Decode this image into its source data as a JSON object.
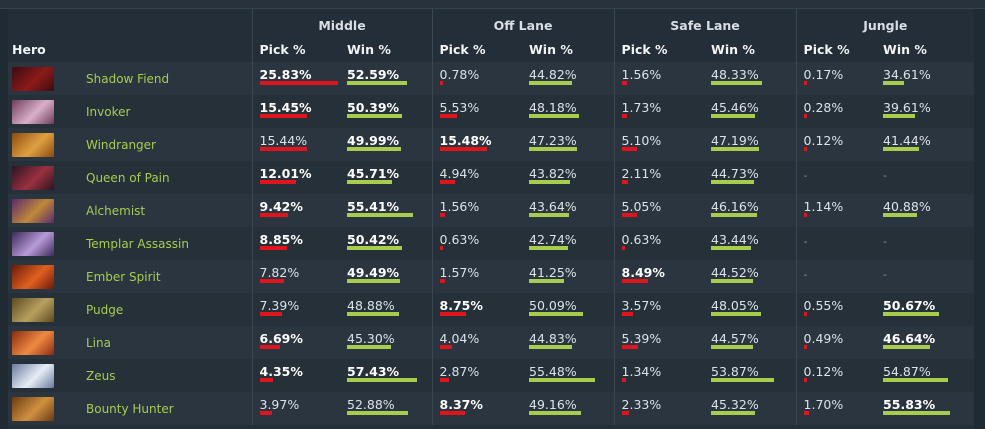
{
  "headers": {
    "hero": "Hero",
    "lanes": [
      "Middle",
      "Off Lane",
      "Safe Lane",
      "Jungle"
    ],
    "pick": "Pick %",
    "win": "Win %"
  },
  "colors": {
    "pick_bar": "#e0141c",
    "win_bar": "#a8cc4d",
    "hero_name": "#a9cc4e"
  },
  "scale": {
    "pick_max_percent": 25.83,
    "win_range_percent": [
      25,
      60
    ]
  },
  "heroes": [
    {
      "name": "Shadow Fiend",
      "portrait_colors": [
        "#3a0c10",
        "#8c1a1a"
      ],
      "icon": "shadow-fiend-portrait",
      "lanes": [
        {
          "pick": "25.83%",
          "pick_bold": true,
          "win": "52.59%",
          "win_bold": true,
          "pick_value": 25.83,
          "win_value": 52.59
        },
        {
          "pick": "0.78%",
          "pick_bold": false,
          "win": "44.82%",
          "win_bold": false,
          "pick_value": 0.78,
          "win_value": 44.82
        },
        {
          "pick": "1.56%",
          "pick_bold": false,
          "win": "48.33%",
          "win_bold": false,
          "pick_value": 1.56,
          "win_value": 48.33
        },
        {
          "pick": "0.17%",
          "pick_bold": false,
          "win": "34.61%",
          "win_bold": false,
          "pick_value": 0.17,
          "win_value": 34.61
        }
      ]
    },
    {
      "name": "Invoker",
      "portrait_colors": [
        "#6d3d5c",
        "#d9b0c8"
      ],
      "icon": "invoker-portrait",
      "lanes": [
        {
          "pick": "15.45%",
          "pick_bold": true,
          "win": "50.39%",
          "win_bold": true,
          "pick_value": 15.45,
          "win_value": 50.39
        },
        {
          "pick": "5.53%",
          "pick_bold": false,
          "win": "48.18%",
          "win_bold": false,
          "pick_value": 5.53,
          "win_value": 48.18
        },
        {
          "pick": "1.73%",
          "pick_bold": false,
          "win": "45.46%",
          "win_bold": false,
          "pick_value": 1.73,
          "win_value": 45.46
        },
        {
          "pick": "0.28%",
          "pick_bold": false,
          "win": "39.61%",
          "win_bold": false,
          "pick_value": 0.28,
          "win_value": 39.61
        }
      ]
    },
    {
      "name": "Windranger",
      "portrait_colors": [
        "#8a4b12",
        "#e0a040"
      ],
      "icon": "windranger-portrait",
      "lanes": [
        {
          "pick": "15.44%",
          "pick_bold": false,
          "win": "49.99%",
          "win_bold": true,
          "pick_value": 15.44,
          "win_value": 49.99
        },
        {
          "pick": "15.48%",
          "pick_bold": true,
          "win": "47.23%",
          "win_bold": false,
          "pick_value": 15.48,
          "win_value": 47.23
        },
        {
          "pick": "5.10%",
          "pick_bold": false,
          "win": "47.19%",
          "win_bold": false,
          "pick_value": 5.1,
          "win_value": 47.19
        },
        {
          "pick": "0.12%",
          "pick_bold": false,
          "win": "41.44%",
          "win_bold": false,
          "pick_value": 0.12,
          "win_value": 41.44
        }
      ]
    },
    {
      "name": "Queen of Pain",
      "portrait_colors": [
        "#2a1420",
        "#9a3040"
      ],
      "icon": "queen-of-pain-portrait",
      "lanes": [
        {
          "pick": "12.01%",
          "pick_bold": true,
          "win": "45.71%",
          "win_bold": true,
          "pick_value": 12.01,
          "win_value": 45.71
        },
        {
          "pick": "4.94%",
          "pick_bold": false,
          "win": "43.82%",
          "win_bold": false,
          "pick_value": 4.94,
          "win_value": 43.82
        },
        {
          "pick": "2.11%",
          "pick_bold": false,
          "win": "44.73%",
          "win_bold": false,
          "pick_value": 2.11,
          "win_value": 44.73
        },
        {
          "pick": "-",
          "pick_bold": false,
          "win": "-",
          "win_bold": false,
          "pick_value": null,
          "win_value": null
        }
      ]
    },
    {
      "name": "Alchemist",
      "portrait_colors": [
        "#5a2a6a",
        "#c0883a"
      ],
      "icon": "alchemist-portrait",
      "lanes": [
        {
          "pick": "9.42%",
          "pick_bold": true,
          "win": "55.41%",
          "win_bold": true,
          "pick_value": 9.42,
          "win_value": 55.41
        },
        {
          "pick": "1.56%",
          "pick_bold": false,
          "win": "43.64%",
          "win_bold": false,
          "pick_value": 1.56,
          "win_value": 43.64
        },
        {
          "pick": "5.05%",
          "pick_bold": false,
          "win": "46.16%",
          "win_bold": false,
          "pick_value": 5.05,
          "win_value": 46.16
        },
        {
          "pick": "1.14%",
          "pick_bold": false,
          "win": "40.88%",
          "win_bold": false,
          "pick_value": 1.14,
          "win_value": 40.88
        }
      ]
    },
    {
      "name": "Templar Assassin",
      "portrait_colors": [
        "#3c2a5a",
        "#b89ad8"
      ],
      "icon": "templar-assassin-portrait",
      "lanes": [
        {
          "pick": "8.85%",
          "pick_bold": true,
          "win": "50.42%",
          "win_bold": true,
          "pick_value": 8.85,
          "win_value": 50.42
        },
        {
          "pick": "0.63%",
          "pick_bold": false,
          "win": "42.74%",
          "win_bold": false,
          "pick_value": 0.63,
          "win_value": 42.74
        },
        {
          "pick": "0.63%",
          "pick_bold": false,
          "win": "43.44%",
          "win_bold": false,
          "pick_value": 0.63,
          "win_value": 43.44
        },
        {
          "pick": "-",
          "pick_bold": false,
          "win": "-",
          "win_bold": false,
          "pick_value": null,
          "win_value": null
        }
      ]
    },
    {
      "name": "Ember Spirit",
      "portrait_colors": [
        "#6a1a0a",
        "#e06020"
      ],
      "icon": "ember-spirit-portrait",
      "lanes": [
        {
          "pick": "7.82%",
          "pick_bold": false,
          "win": "49.49%",
          "win_bold": true,
          "pick_value": 7.82,
          "win_value": 49.49
        },
        {
          "pick": "1.57%",
          "pick_bold": false,
          "win": "41.25%",
          "win_bold": false,
          "pick_value": 1.57,
          "win_value": 41.25
        },
        {
          "pick": "8.49%",
          "pick_bold": true,
          "win": "44.52%",
          "win_bold": false,
          "pick_value": 8.49,
          "win_value": 44.52
        },
        {
          "pick": "-",
          "pick_bold": false,
          "win": "-",
          "win_bold": false,
          "pick_value": null,
          "win_value": null
        }
      ]
    },
    {
      "name": "Pudge",
      "portrait_colors": [
        "#5a4a20",
        "#b8a060"
      ],
      "icon": "pudge-portrait",
      "lanes": [
        {
          "pick": "7.39%",
          "pick_bold": false,
          "win": "48.88%",
          "win_bold": false,
          "pick_value": 7.39,
          "win_value": 48.88
        },
        {
          "pick": "8.75%",
          "pick_bold": true,
          "win": "50.09%",
          "win_bold": false,
          "pick_value": 8.75,
          "win_value": 50.09
        },
        {
          "pick": "3.57%",
          "pick_bold": false,
          "win": "48.05%",
          "win_bold": false,
          "pick_value": 3.57,
          "win_value": 48.05
        },
        {
          "pick": "0.55%",
          "pick_bold": false,
          "win": "50.67%",
          "win_bold": true,
          "pick_value": 0.55,
          "win_value": 50.67
        }
      ]
    },
    {
      "name": "Lina",
      "portrait_colors": [
        "#8a2a10",
        "#f08a40"
      ],
      "icon": "lina-portrait",
      "lanes": [
        {
          "pick": "6.69%",
          "pick_bold": true,
          "win": "45.30%",
          "win_bold": false,
          "pick_value": 6.69,
          "win_value": 45.3
        },
        {
          "pick": "4.04%",
          "pick_bold": false,
          "win": "44.83%",
          "win_bold": false,
          "pick_value": 4.04,
          "win_value": 44.83
        },
        {
          "pick": "5.39%",
          "pick_bold": false,
          "win": "44.57%",
          "win_bold": false,
          "pick_value": 5.39,
          "win_value": 44.57
        },
        {
          "pick": "0.49%",
          "pick_bold": false,
          "win": "46.64%",
          "win_bold": true,
          "pick_value": 0.49,
          "win_value": 46.64
        }
      ]
    },
    {
      "name": "Zeus",
      "portrait_colors": [
        "#6a7a9a",
        "#e8eef8"
      ],
      "icon": "zeus-portrait",
      "lanes": [
        {
          "pick": "4.35%",
          "pick_bold": true,
          "win": "57.43%",
          "win_bold": true,
          "pick_value": 4.35,
          "win_value": 57.43
        },
        {
          "pick": "2.87%",
          "pick_bold": false,
          "win": "55.48%",
          "win_bold": false,
          "pick_value": 2.87,
          "win_value": 55.48
        },
        {
          "pick": "1.34%",
          "pick_bold": false,
          "win": "53.87%",
          "win_bold": false,
          "pick_value": 1.34,
          "win_value": 53.87
        },
        {
          "pick": "0.12%",
          "pick_bold": false,
          "win": "54.87%",
          "win_bold": false,
          "pick_value": 0.12,
          "win_value": 54.87
        }
      ]
    },
    {
      "name": "Bounty Hunter",
      "portrait_colors": [
        "#6a3a10",
        "#d09040"
      ],
      "icon": "bounty-hunter-portrait",
      "lanes": [
        {
          "pick": "3.97%",
          "pick_bold": false,
          "win": "52.88%",
          "win_bold": false,
          "pick_value": 3.97,
          "win_value": 52.88
        },
        {
          "pick": "8.37%",
          "pick_bold": true,
          "win": "49.16%",
          "win_bold": false,
          "pick_value": 8.37,
          "win_value": 49.16
        },
        {
          "pick": "2.33%",
          "pick_bold": false,
          "win": "45.32%",
          "win_bold": false,
          "pick_value": 2.33,
          "win_value": 45.32
        },
        {
          "pick": "1.70%",
          "pick_bold": false,
          "win": "55.83%",
          "win_bold": true,
          "pick_value": 1.7,
          "win_value": 55.83
        }
      ]
    }
  ]
}
